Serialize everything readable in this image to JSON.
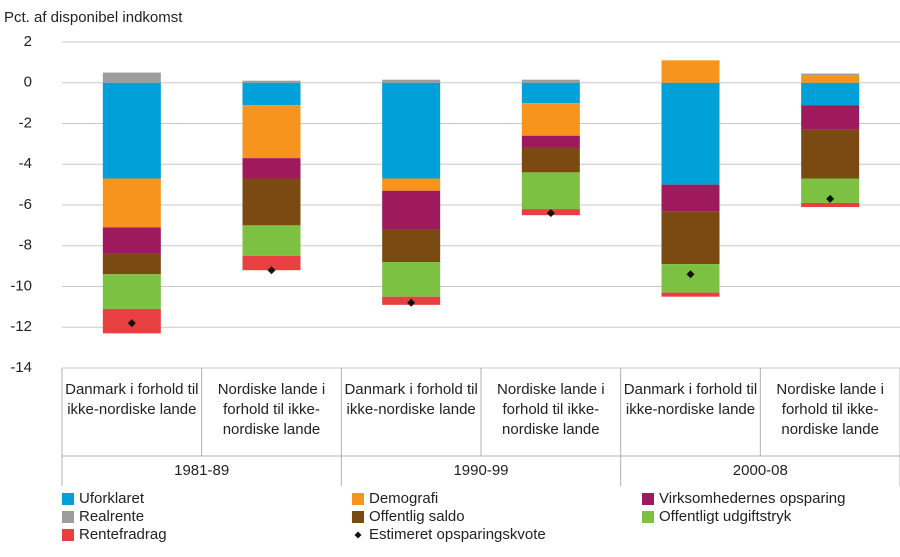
{
  "chart_data": {
    "type": "bar",
    "stacked": true,
    "ylabel": "Pct. af disponibel indkomst",
    "categories": [
      "Danmark i forhold til ikke-nordiske lande",
      "Nordiske lande i forhold til ikke-nordiske lande",
      "Danmark i forhold til ikke-nordiske lande",
      "Nordiske lande i forhold til ikke-nordiske lande",
      "Danmark i forhold til ikke-nordiske lande",
      "Nordiske lande i forhold til ikke-nordiske lande"
    ],
    "groups": [
      "1981-89",
      "1990-99",
      "2000-08"
    ],
    "series": [
      {
        "name": "Uforklaret",
        "color": "#00a0d8",
        "values": [
          -4.7,
          -1.1,
          -4.7,
          -1.0,
          -5.0,
          -1.1
        ]
      },
      {
        "name": "Demografi",
        "color": "#f7941d",
        "values": [
          -2.4,
          -2.6,
          -0.6,
          -1.6,
          1.1,
          0.35
        ]
      },
      {
        "name": "Virksomhedernes opsparing",
        "color": "#9e1a5c",
        "values": [
          -1.3,
          -1.0,
          -1.9,
          -0.6,
          -1.3,
          -1.2
        ]
      },
      {
        "name": "Realrente",
        "color": "#9d9d9d",
        "values": [
          0.5,
          0.1,
          0.15,
          0.15,
          0,
          0.1
        ]
      },
      {
        "name": "Offentlig saldo",
        "color": "#7b4a12",
        "values": [
          -1.0,
          -2.3,
          -1.6,
          -1.2,
          -2.6,
          -2.4
        ]
      },
      {
        "name": "Offentligt udgiftstryk",
        "color": "#7dc142",
        "values": [
          -1.7,
          -1.5,
          -1.7,
          -1.8,
          -1.4,
          -1.2
        ]
      },
      {
        "name": "Rentefradrag",
        "color": "#e84040",
        "values": [
          -1.2,
          -0.7,
          -0.4,
          -0.3,
          -0.2,
          -0.2
        ]
      },
      {
        "name": "Estimeret opsparingskvote",
        "color": "#111111",
        "type": "scatter",
        "values": [
          -11.8,
          -9.2,
          -10.8,
          -6.4,
          -9.4,
          -5.7
        ]
      }
    ],
    "ylim": [
      -14,
      2
    ],
    "yticks": [
      -14,
      -12,
      -10,
      -8,
      -6,
      -4,
      -2,
      0,
      2
    ],
    "grid": true
  }
}
